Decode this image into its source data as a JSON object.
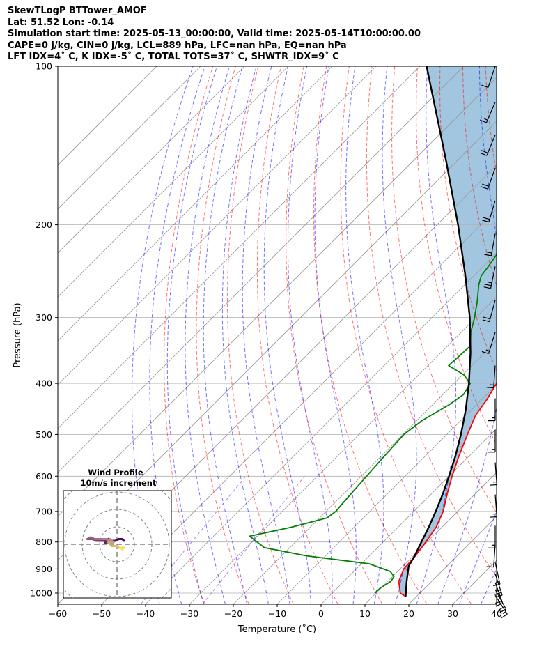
{
  "title_lines": [
    "SkewTLogP BTTower_AMOF",
    "Lat: 51.52   Lon: -0.14",
    "Simulation start time: 2025-05-13_00:00:00, Valid time: 2025-05-14T10:00:00.00",
    "CAPE=0 j/kg, CIN=0 j/kg, LCL=889 hPa, LFC=nan hPa, EQ=nan hPa",
    "LFT IDX=4˚ C, K IDX=-5˚ C, TOTAL TOTS=37˚ C, SHWTR_IDX=9˚ C"
  ],
  "chart_data": {
    "type": "line",
    "subtype": "skew-t log-p",
    "xlabel": "Temperature (˚C)",
    "ylabel": "Pressure (hPa)",
    "xlim": [
      -60,
      40
    ],
    "ylim": [
      1050,
      100
    ],
    "y_scale": "log",
    "x_ticks": [
      -60,
      -50,
      -40,
      -30,
      -20,
      -10,
      0,
      10,
      20,
      30,
      40
    ],
    "x_tick_labels": [
      "−60",
      "−50",
      "−40",
      "−30",
      "−20",
      "−10",
      "0",
      "10",
      "20",
      "30",
      "40"
    ],
    "y_ticks": [
      1000,
      900,
      800,
      700,
      600,
      500,
      400,
      300,
      200,
      100
    ],
    "y_tick_labels": [
      "1000",
      "900",
      "800",
      "700",
      "600",
      "500",
      "400",
      "300",
      "200",
      "100"
    ],
    "grid": true,
    "series": [
      {
        "role": "temperature",
        "color": "#ff0000",
        "points": [
          [
            1015,
            17.5
          ],
          [
            1000,
            15.5
          ],
          [
            950,
            12.5
          ],
          [
            900,
            10.8
          ],
          [
            850,
            10.5
          ],
          [
            800,
            9.7
          ],
          [
            750,
            8.7
          ],
          [
            700,
            6.7
          ],
          [
            650,
            3.7
          ],
          [
            600,
            0.7
          ],
          [
            550,
            -2.3
          ],
          [
            500,
            -5.3
          ],
          [
            460,
            -7.8
          ],
          [
            430,
            -8.8
          ],
          [
            400,
            -10.3
          ],
          [
            380,
            -11.8
          ],
          [
            350,
            -15.8
          ],
          [
            320,
            -19.8
          ],
          [
            300,
            -22.8
          ],
          [
            280,
            -25.3
          ],
          [
            260,
            -27.8
          ],
          [
            250,
            -28.8
          ],
          [
            240,
            -29.8
          ],
          [
            230,
            -30.8
          ],
          [
            220,
            -32.3
          ],
          [
            210,
            -34.3
          ],
          [
            200,
            -36.3
          ],
          [
            190,
            -38.3
          ],
          [
            175,
            -42.8
          ],
          [
            165,
            -45.3
          ],
          [
            150,
            -49.8
          ],
          [
            140,
            -53.3
          ],
          [
            130,
            -56.8
          ],
          [
            120,
            -59.8
          ],
          [
            110,
            -62.8
          ],
          [
            105,
            -63.8
          ],
          [
            100,
            -64.8
          ]
        ]
      },
      {
        "role": "dewpoint",
        "color": "#008000",
        "points": [
          [
            1000,
            9.7
          ],
          [
            980,
            9.8
          ],
          [
            950,
            10.7
          ],
          [
            930,
            10.3
          ],
          [
            910,
            8.3
          ],
          [
            880,
            1.8
          ],
          [
            850,
            -14.3
          ],
          [
            820,
            -25.8
          ],
          [
            780,
            -31.8
          ],
          [
            750,
            -24.3
          ],
          [
            720,
            -18.3
          ],
          [
            700,
            -17.8
          ],
          [
            650,
            -18.3
          ],
          [
            600,
            -18.8
          ],
          [
            550,
            -19.3
          ],
          [
            500,
            -19.8
          ],
          [
            470,
            -18.8
          ],
          [
            440,
            -16.3
          ],
          [
            420,
            -15.3
          ],
          [
            400,
            -16.3
          ],
          [
            385,
            -19.8
          ],
          [
            370,
            -25.3
          ],
          [
            340,
            -24.8
          ],
          [
            320,
            -27.8
          ],
          [
            300,
            -30.3
          ],
          [
            280,
            -33.3
          ],
          [
            260,
            -36.8
          ],
          [
            250,
            -38.3
          ],
          [
            240,
            -38.8
          ],
          [
            225,
            -39.8
          ],
          [
            210,
            -40.8
          ],
          [
            195,
            -41.8
          ],
          [
            185,
            -42.3
          ],
          [
            175,
            -45.8
          ],
          [
            165,
            -49.3
          ],
          [
            155,
            -51.3
          ],
          [
            145,
            -52.8
          ],
          [
            130,
            -53.3
          ],
          [
            115,
            -54.3
          ],
          [
            100,
            -55.3
          ]
        ]
      },
      {
        "role": "parcel",
        "color": "#000000",
        "points": [
          [
            1015,
            17.5
          ],
          [
            950,
            14.3
          ],
          [
            889,
            11.3
          ],
          [
            850,
            10.3
          ],
          [
            800,
            8.7
          ],
          [
            750,
            7.0
          ],
          [
            700,
            5.0
          ],
          [
            650,
            2.7
          ],
          [
            600,
            0.0
          ],
          [
            550,
            -3.1
          ],
          [
            500,
            -6.8
          ],
          [
            450,
            -11.2
          ],
          [
            400,
            -16.6
          ],
          [
            350,
            -23.2
          ],
          [
            300,
            -31.4
          ],
          [
            250,
            -41.9
          ],
          [
            200,
            -55.2
          ],
          [
            150,
            -73.0
          ],
          [
            100,
            -98.5
          ]
        ]
      }
    ],
    "cape_cin_fill_color": "#a2c6e0",
    "reference_lines": {
      "dry_adiabats_color": "#ff0000",
      "moist_adiabats_color": "#0000ff",
      "mixing_ratio_color": "#8a2be2",
      "isotherm_color": "#999999"
    },
    "wind_barbs": [
      {
        "p": 100,
        "u": 3,
        "v": 9
      },
      {
        "p": 117,
        "u": 6,
        "v": 14
      },
      {
        "p": 135,
        "u": 9,
        "v": 22
      },
      {
        "p": 156,
        "u": 7,
        "v": 20
      },
      {
        "p": 180,
        "u": 6,
        "v": 20
      },
      {
        "p": 208,
        "u": 4,
        "v": 22
      },
      {
        "p": 240,
        "u": 5,
        "v": 24
      },
      {
        "p": 278,
        "u": 6,
        "v": 22
      },
      {
        "p": 320,
        "u": 5,
        "v": 16
      },
      {
        "p": 370,
        "u": 1,
        "v": 14
      },
      {
        "p": 427,
        "u": 0,
        "v": 14
      },
      {
        "p": 490,
        "u": 0,
        "v": 14
      },
      {
        "p": 565,
        "u": -1,
        "v": 14
      },
      {
        "p": 650,
        "u": -1,
        "v": 14
      },
      {
        "p": 745,
        "u": 0,
        "v": 14
      },
      {
        "p": 810,
        "u": 1,
        "v": 14
      },
      {
        "p": 875,
        "u": -4,
        "v": 18
      },
      {
        "p": 920,
        "u": -8,
        "v": 24
      },
      {
        "p": 955,
        "u": -8,
        "v": 22
      },
      {
        "p": 985,
        "u": -10,
        "v": 18
      },
      {
        "p": 1010,
        "u": -9,
        "v": 14
      }
    ],
    "inset": {
      "title_lines": [
        "Wind Profile",
        "10m/s increment"
      ],
      "ring_step": 10,
      "rings": 4,
      "hodograph": [
        [
          4,
          2
        ],
        [
          3,
          3
        ],
        [
          1,
          3
        ],
        [
          -1,
          2
        ],
        [
          -3,
          2
        ],
        [
          -5,
          3
        ],
        [
          -7,
          1
        ],
        [
          -5,
          1
        ],
        [
          -6,
          2
        ],
        [
          -8,
          2
        ],
        [
          -10,
          2
        ],
        [
          -12,
          2
        ],
        [
          -14,
          3
        ],
        [
          -16,
          3
        ],
        [
          -17,
          3
        ],
        [
          -17,
          3
        ],
        [
          -15,
          4
        ],
        [
          -13,
          3
        ],
        [
          -12,
          3
        ],
        [
          -10,
          3
        ],
        [
          -9,
          3
        ],
        [
          -7,
          3
        ],
        [
          -6,
          3
        ],
        [
          -5,
          2
        ],
        [
          -4,
          3
        ],
        [
          -3,
          2
        ],
        [
          -2,
          1
        ],
        [
          -4,
          1
        ],
        [
          -5,
          1
        ],
        [
          -4,
          0
        ],
        [
          -3,
          -1
        ],
        [
          -1,
          -1
        ],
        [
          0,
          -1
        ],
        [
          1,
          -2
        ],
        [
          2,
          -2
        ],
        [
          3,
          -2
        ],
        [
          4,
          -2
        ],
        [
          4,
          -2
        ],
        [
          3,
          -3
        ],
        [
          2,
          -2
        ]
      ]
    }
  }
}
